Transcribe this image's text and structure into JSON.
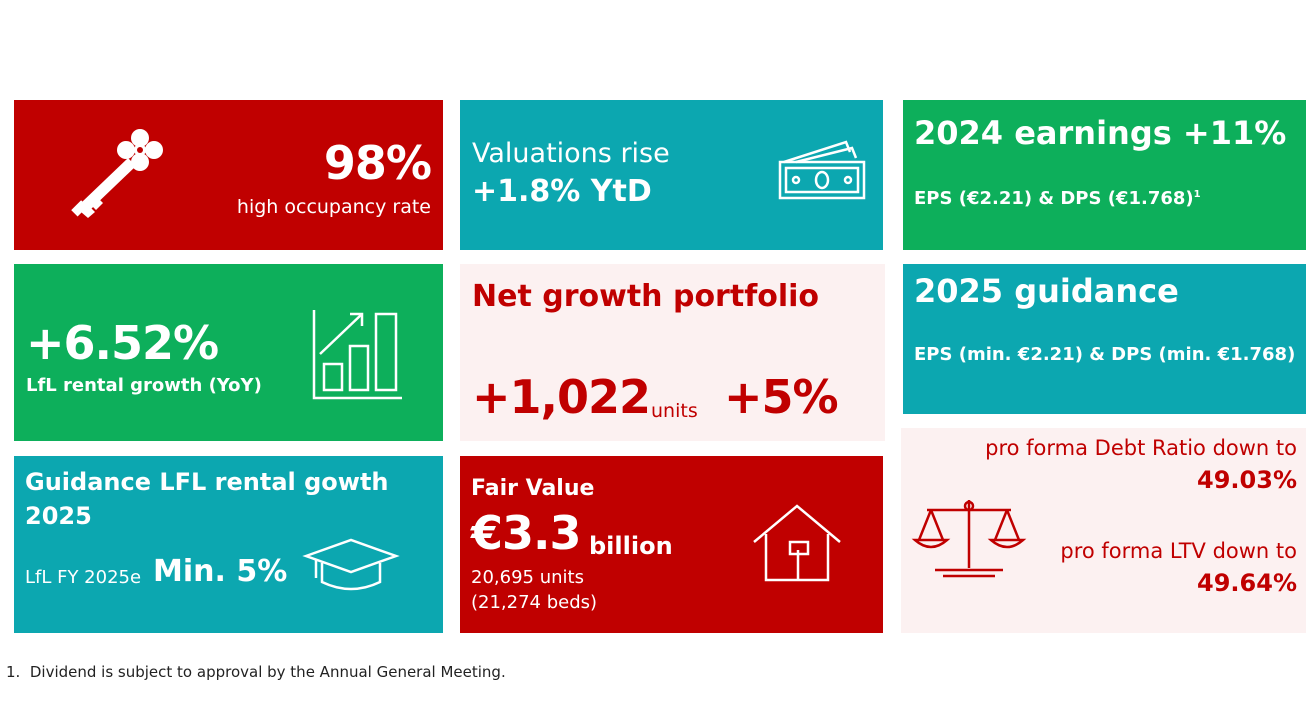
{
  "occupancy": {
    "value": "98%",
    "label": "high occupancy rate"
  },
  "valuations": {
    "title": "Valuations rise",
    "value": "+1.8% YtD"
  },
  "earnings": {
    "title": "2024 earnings +11%",
    "detail": "EPS (€2.21) & DPS (€1.768)",
    "sup": "1"
  },
  "lfl": {
    "value": "+6.52%",
    "label": "LfL rental growth (YoY)"
  },
  "net_growth": {
    "title": "Net growth portfolio",
    "units_value": "+1,022",
    "units_label": "units",
    "percent": "+5%"
  },
  "guidance": {
    "title": "2025 guidance",
    "detail": "EPS (min. €2.21) & DPS (min. €1.768)"
  },
  "guidance_lfl": {
    "title_line1": "Guidance LFL rental gowth",
    "title_line2": "2025",
    "label": "LfL FY 2025e",
    "value": "Min. 5%"
  },
  "fair_value": {
    "title": "Fair Value",
    "value": "€3.3",
    "unit": "billion",
    "units": "20,695 units",
    "beds": "(21,274 beds)"
  },
  "debt": {
    "debt_label": "pro forma Debt Ratio down to",
    "debt_value": "49.03%",
    "ltv_label": "pro forma LTV down to",
    "ltv_value": "49.64%"
  },
  "footnote": {
    "number": "1.",
    "text": "Dividend is subject to approval by the Annual General Meeting."
  },
  "colors": {
    "red": "#c00000",
    "teal": "#0ca7b0",
    "green": "#0daf5b",
    "pink": "#fcf1f1"
  }
}
